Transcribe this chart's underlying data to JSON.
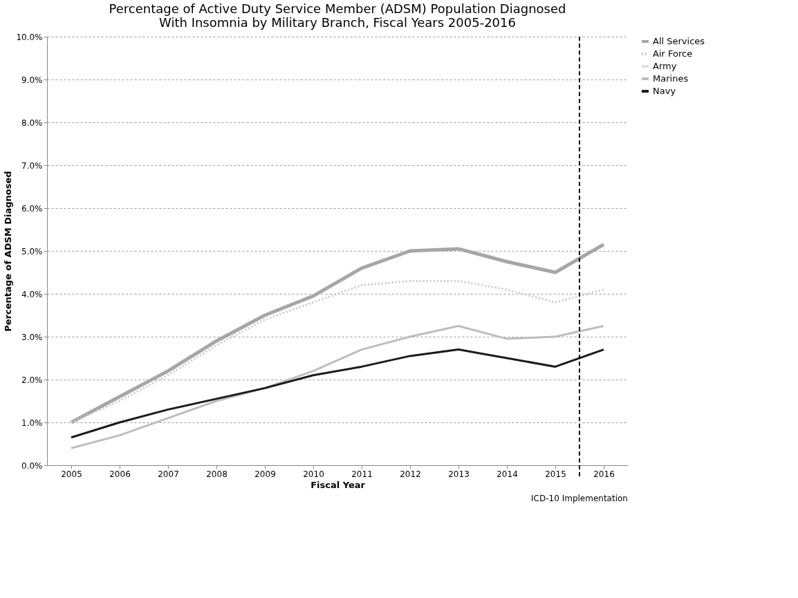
{
  "chart_data": {
    "type": "line",
    "title": [
      "Percentage of Active Duty Service Member (ADSM) Population Diagnosed",
      "With Insomnia by Military Branch, Fiscal Years 2005-2016"
    ],
    "xlabel": "Fiscal Year",
    "ylabel": "Percentage of ADSM Diagnosed",
    "x": [
      2005,
      2006,
      2007,
      2008,
      2009,
      2010,
      2011,
      2012,
      2013,
      2014,
      2015,
      2016
    ],
    "xlim": [
      2004.5,
      2016.5
    ],
    "xticks": [
      2005,
      2006,
      2007,
      2008,
      2009,
      2010,
      2011,
      2012,
      2013,
      2014,
      2015,
      2016
    ],
    "ylim": [
      0,
      10
    ],
    "yticks": [
      {
        "value": 0,
        "label": "0.0%"
      },
      {
        "value": 1,
        "label": "1.0%"
      },
      {
        "value": 2,
        "label": "2.0%"
      },
      {
        "value": 3,
        "label": "3.0%"
      },
      {
        "value": 4,
        "label": "4.0%"
      },
      {
        "value": 5,
        "label": "5.0%"
      },
      {
        "value": 6,
        "label": "6.0%"
      },
      {
        "value": 7,
        "label": "7.0%"
      },
      {
        "value": 8,
        "label": "8.0%"
      },
      {
        "value": 9,
        "label": "9.0%"
      },
      {
        "value": 10,
        "label": "10.0%"
      }
    ],
    "grid": "y",
    "legend": "right",
    "marker": "none",
    "series": [
      {
        "name": "All Services",
        "color": "#a6a6a6",
        "values": [
          1.0,
          1.6,
          2.2,
          2.9,
          3.5,
          3.95,
          4.6,
          5.0,
          5.05,
          4.75,
          4.5,
          5.15
        ]
      },
      {
        "name": "Air Force",
        "color": "#c8c8c8",
        "line_style": "dotted",
        "values": [
          1.0,
          1.5,
          2.1,
          2.8,
          3.4,
          3.8,
          4.2,
          4.3,
          4.3,
          4.1,
          3.8,
          4.1
        ]
      },
      {
        "name": "Army",
        "color": "#e0e0e0",
        "values": [
          null,
          null,
          null,
          null,
          null,
          null,
          null,
          null,
          null,
          null,
          null,
          null
        ]
      },
      {
        "name": "Marines",
        "color": "#bdbdbd",
        "values": [
          0.4,
          0.7,
          1.1,
          1.5,
          1.8,
          2.2,
          2.7,
          3.0,
          3.25,
          2.95,
          3.0,
          3.25
        ]
      },
      {
        "name": "Navy",
        "color": "#1a1a1a",
        "values": [
          0.65,
          1.0,
          1.3,
          1.55,
          1.8,
          2.1,
          2.3,
          2.55,
          2.7,
          2.5,
          2.3,
          2.7
        ]
      }
    ],
    "ref_lines": [
      {
        "axis": "x",
        "value": 2015.5,
        "label": "ICD-10 Implementation",
        "color": "#000000",
        "line_style": "dashed"
      }
    ]
  }
}
